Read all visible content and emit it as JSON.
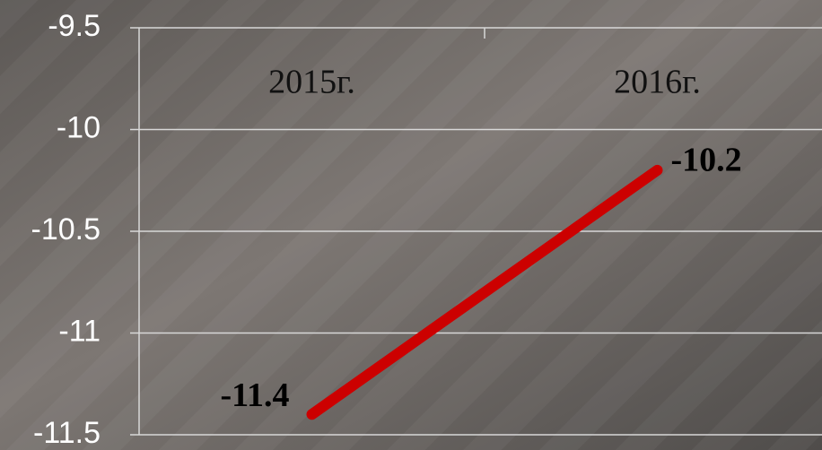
{
  "chart_data": {
    "type": "line",
    "categories": [
      "2015г.",
      "2016г."
    ],
    "series": [
      {
        "name": null,
        "color": "#cc0000",
        "values": [
          -11.4,
          -10.2
        ]
      }
    ],
    "ylim": [
      -11.5,
      -9.5
    ],
    "yticks": [
      -9.5,
      -10,
      -10.5,
      -11,
      -11.5
    ],
    "grid": true
  }
}
